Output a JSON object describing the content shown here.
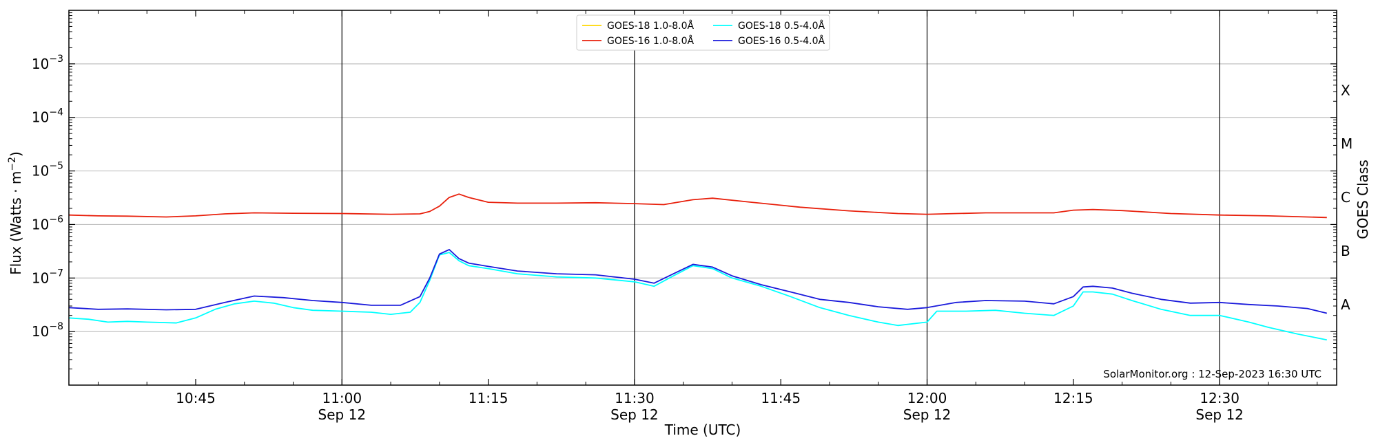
{
  "chart_data": {
    "type": "line",
    "title": "",
    "xlabel": "Time (UTC)",
    "ylabel": "Flux (Watts · m⁻²)",
    "y2label": "GOES Class",
    "yscale": "log",
    "ylim": [
      1e-09,
      0.01
    ],
    "xlim": [
      "10:32",
      "12:42"
    ],
    "yticks": [
      {
        "value": 0.001,
        "base": "10",
        "exp": "−3"
      },
      {
        "value": 0.0001,
        "base": "10",
        "exp": "−4"
      },
      {
        "value": 1e-05,
        "base": "10",
        "exp": "−5"
      },
      {
        "value": 1e-06,
        "base": "10",
        "exp": "−6"
      },
      {
        "value": 1e-07,
        "base": "10",
        "exp": "−7"
      },
      {
        "value": 1e-08,
        "base": "10",
        "exp": "−8"
      }
    ],
    "xticks": [
      {
        "time": "10:45",
        "label": "10:45",
        "sublabel": ""
      },
      {
        "time": "11:00",
        "label": "11:00",
        "sublabel": "Sep 12"
      },
      {
        "time": "11:15",
        "label": "11:15",
        "sublabel": ""
      },
      {
        "time": "11:30",
        "label": "11:30",
        "sublabel": "Sep 12"
      },
      {
        "time": "11:45",
        "label": "11:45",
        "sublabel": ""
      },
      {
        "time": "12:00",
        "label": "12:00",
        "sublabel": "Sep 12"
      },
      {
        "time": "12:15",
        "label": "12:15",
        "sublabel": ""
      },
      {
        "time": "12:30",
        "label": "12:30",
        "sublabel": "Sep 12"
      }
    ],
    "vertical_lines": [
      "11:00",
      "11:30",
      "12:00",
      "12:30"
    ],
    "goes_classes": [
      {
        "label": "A",
        "flux": 1e-08
      },
      {
        "label": "B",
        "flux": 1e-07
      },
      {
        "label": "C",
        "flux": 1e-06
      },
      {
        "label": "M",
        "flux": 1e-05
      },
      {
        "label": "X",
        "flux": 0.0001
      }
    ],
    "grid": true,
    "legend": {
      "placement": "top-center",
      "columns": 2
    },
    "annotation": "SolarMonitor.org : 12-Sep-2023 16:30 UTC",
    "series": [
      {
        "name": "GOES-18 1.0-8.0Å",
        "color": "#ffd700",
        "x": [],
        "y": []
      },
      {
        "name": "GOES-16 1.0-8.0Å",
        "color": "#e8200c",
        "x": [
          "10:32",
          "10:35",
          "10:38",
          "10:42",
          "10:45",
          "10:48",
          "10:51",
          "10:55",
          "11:00",
          "11:05",
          "11:08",
          "11:09",
          "11:10",
          "11:11",
          "11:12",
          "11:13",
          "11:15",
          "11:18",
          "11:22",
          "11:26",
          "11:30",
          "11:33",
          "11:36",
          "11:38",
          "11:42",
          "11:47",
          "11:52",
          "11:57",
          "12:00",
          "12:03",
          "12:06",
          "12:10",
          "12:13",
          "12:15",
          "12:17",
          "12:20",
          "12:25",
          "12:30",
          "12:35",
          "12:41"
        ],
        "y": [
          1.5e-06,
          1.45e-06,
          1.43e-06,
          1.38e-06,
          1.45e-06,
          1.58e-06,
          1.65e-06,
          1.62e-06,
          1.6e-06,
          1.55e-06,
          1.58e-06,
          1.75e-06,
          2.2e-06,
          3.2e-06,
          3.7e-06,
          3.2e-06,
          2.6e-06,
          2.5e-06,
          2.5e-06,
          2.55e-06,
          2.45e-06,
          2.35e-06,
          2.9e-06,
          3.1e-06,
          2.6e-06,
          2.1e-06,
          1.8e-06,
          1.6e-06,
          1.55e-06,
          1.6e-06,
          1.65e-06,
          1.65e-06,
          1.65e-06,
          1.85e-06,
          1.9e-06,
          1.82e-06,
          1.6e-06,
          1.5e-06,
          1.45e-06,
          1.35e-06
        ]
      },
      {
        "name": "GOES-18 0.5-4.0Å",
        "color": "#00ffff",
        "x": [
          "10:32",
          "10:34",
          "10:36",
          "10:38",
          "10:40",
          "10:43",
          "10:45",
          "10:47",
          "10:49",
          "10:51",
          "10:53",
          "10:55",
          "10:57",
          "11:00",
          "11:03",
          "11:05",
          "11:07",
          "11:08",
          "11:09",
          "11:10",
          "11:11",
          "11:12",
          "11:13",
          "11:15",
          "11:18",
          "11:22",
          "11:26",
          "11:30",
          "11:32",
          "11:34",
          "11:36",
          "11:38",
          "11:40",
          "11:43",
          "11:46",
          "11:49",
          "11:52",
          "11:55",
          "11:57",
          "12:00",
          "12:01",
          "12:04",
          "12:07",
          "12:10",
          "12:13",
          "12:15",
          "12:16",
          "12:17",
          "12:19",
          "12:21",
          "12:24",
          "12:27",
          "12:30",
          "12:33",
          "12:35",
          "12:38",
          "12:41"
        ],
        "y": [
          1.8e-08,
          1.7e-08,
          1.5e-08,
          1.55e-08,
          1.5e-08,
          1.45e-08,
          1.8e-08,
          2.6e-08,
          3.3e-08,
          3.7e-08,
          3.4e-08,
          2.8e-08,
          2.5e-08,
          2.4e-08,
          2.3e-08,
          2.1e-08,
          2.3e-08,
          3.5e-08,
          9e-08,
          2.7e-07,
          3e-07,
          2.1e-07,
          1.7e-07,
          1.5e-07,
          1.2e-07,
          1.05e-07,
          1e-07,
          8.5e-08,
          7e-08,
          1.1e-07,
          1.7e-07,
          1.5e-07,
          1e-07,
          7e-08,
          4.5e-08,
          2.8e-08,
          2e-08,
          1.5e-08,
          1.3e-08,
          1.5e-08,
          2.4e-08,
          2.4e-08,
          2.5e-08,
          2.2e-08,
          2e-08,
          3e-08,
          5.5e-08,
          5.5e-08,
          5e-08,
          3.8e-08,
          2.6e-08,
          2e-08,
          2e-08,
          1.5e-08,
          1.2e-08,
          9e-09,
          7e-09
        ]
      },
      {
        "name": "GOES-16 0.5-4.0Å",
        "color": "#1a1adb",
        "x": [
          "10:32",
          "10:35",
          "10:38",
          "10:42",
          "10:45",
          "10:48",
          "10:51",
          "10:54",
          "10:57",
          "11:00",
          "11:03",
          "11:06",
          "11:08",
          "11:09",
          "11:10",
          "11:11",
          "11:12",
          "11:13",
          "11:15",
          "11:18",
          "11:22",
          "11:26",
          "11:30",
          "11:32",
          "11:34",
          "11:36",
          "11:38",
          "11:40",
          "11:43",
          "11:46",
          "11:49",
          "11:52",
          "11:55",
          "11:58",
          "12:00",
          "12:03",
          "12:06",
          "12:10",
          "12:13",
          "12:15",
          "12:16",
          "12:17",
          "12:19",
          "12:21",
          "12:24",
          "12:27",
          "12:30",
          "12:33",
          "12:36",
          "12:39",
          "12:41"
        ],
        "y": [
          2.8e-08,
          2.6e-08,
          2.65e-08,
          2.55e-08,
          2.6e-08,
          3.5e-08,
          4.6e-08,
          4.3e-08,
          3.8e-08,
          3.5e-08,
          3.1e-08,
          3.1e-08,
          4.5e-08,
          1e-07,
          2.8e-07,
          3.4e-07,
          2.3e-07,
          1.9e-07,
          1.65e-07,
          1.35e-07,
          1.2e-07,
          1.15e-07,
          9.5e-08,
          8e-08,
          1.2e-07,
          1.8e-07,
          1.6e-07,
          1.1e-07,
          7.5e-08,
          5.5e-08,
          4e-08,
          3.5e-08,
          2.9e-08,
          2.6e-08,
          2.8e-08,
          3.5e-08,
          3.8e-08,
          3.7e-08,
          3.3e-08,
          4.5e-08,
          6.8e-08,
          7e-08,
          6.5e-08,
          5.2e-08,
          4e-08,
          3.4e-08,
          3.5e-08,
          3.2e-08,
          3e-08,
          2.7e-08,
          2.2e-08
        ]
      }
    ]
  }
}
